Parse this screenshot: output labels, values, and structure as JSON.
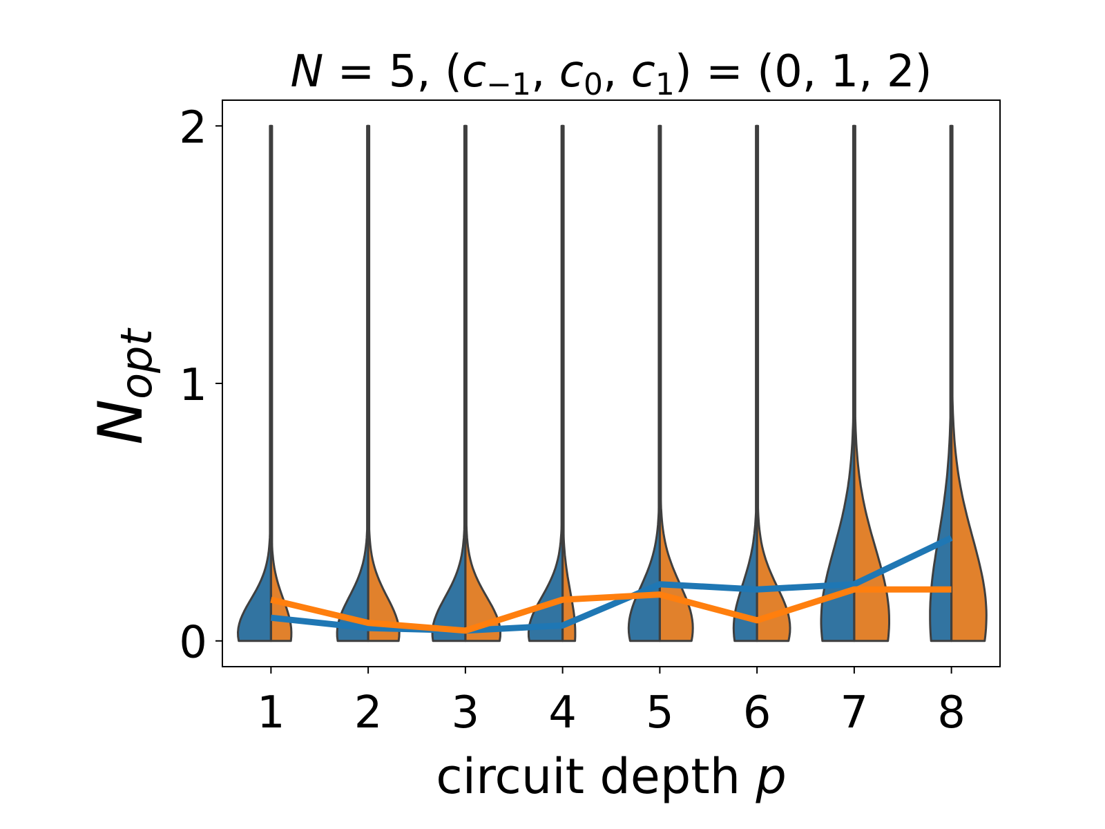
{
  "chart_data": {
    "type": "violin",
    "title": "N = 5, (c₋₁, c₀, c₁) = (0, 1, 2)",
    "xlabel": "circuit depth p",
    "ylabel": "N_opt",
    "x": [
      1,
      2,
      3,
      4,
      5,
      6,
      7,
      8
    ],
    "xticks": [
      "1",
      "2",
      "3",
      "4",
      "5",
      "6",
      "7",
      "8"
    ],
    "yticks": [
      "0",
      "1",
      "2"
    ],
    "ylim": [
      -0.1,
      2.1
    ],
    "xlim": [
      0.5,
      8.5
    ],
    "series": [
      {
        "color": "#1f77b4",
        "fill": "#3274a1",
        "side": "left",
        "line_values": [
          0.09,
          0.05,
          0.04,
          0.06,
          0.22,
          0.2,
          0.22,
          0.4
        ],
        "violin_width": [
          0.34,
          0.32,
          0.34,
          0.35,
          0.32,
          0.24,
          0.34,
          0.22
        ],
        "violin_peak": [
          0.03,
          0.03,
          0.03,
          0.03,
          0.05,
          0.05,
          0.08,
          0.1
        ],
        "violin_spread": [
          0.13,
          0.14,
          0.14,
          0.14,
          0.16,
          0.17,
          0.28,
          0.3
        ],
        "violin_max": [
          2,
          2,
          2,
          2,
          2,
          2,
          2,
          2
        ]
      },
      {
        "color": "#ff7f0e",
        "fill": "#e1812c",
        "side": "right",
        "line_values": [
          0.16,
          0.07,
          0.04,
          0.16,
          0.18,
          0.08,
          0.2,
          0.2
        ],
        "violin_width": [
          0.21,
          0.32,
          0.36,
          0.13,
          0.34,
          0.34,
          0.36,
          0.36
        ],
        "violin_peak": [
          0.03,
          0.03,
          0.03,
          0.03,
          0.05,
          0.05,
          0.08,
          0.1
        ],
        "violin_spread": [
          0.13,
          0.14,
          0.14,
          0.16,
          0.17,
          0.16,
          0.28,
          0.3
        ],
        "violin_max": [
          2,
          2,
          2,
          2,
          2,
          2,
          2,
          2
        ]
      }
    ]
  }
}
